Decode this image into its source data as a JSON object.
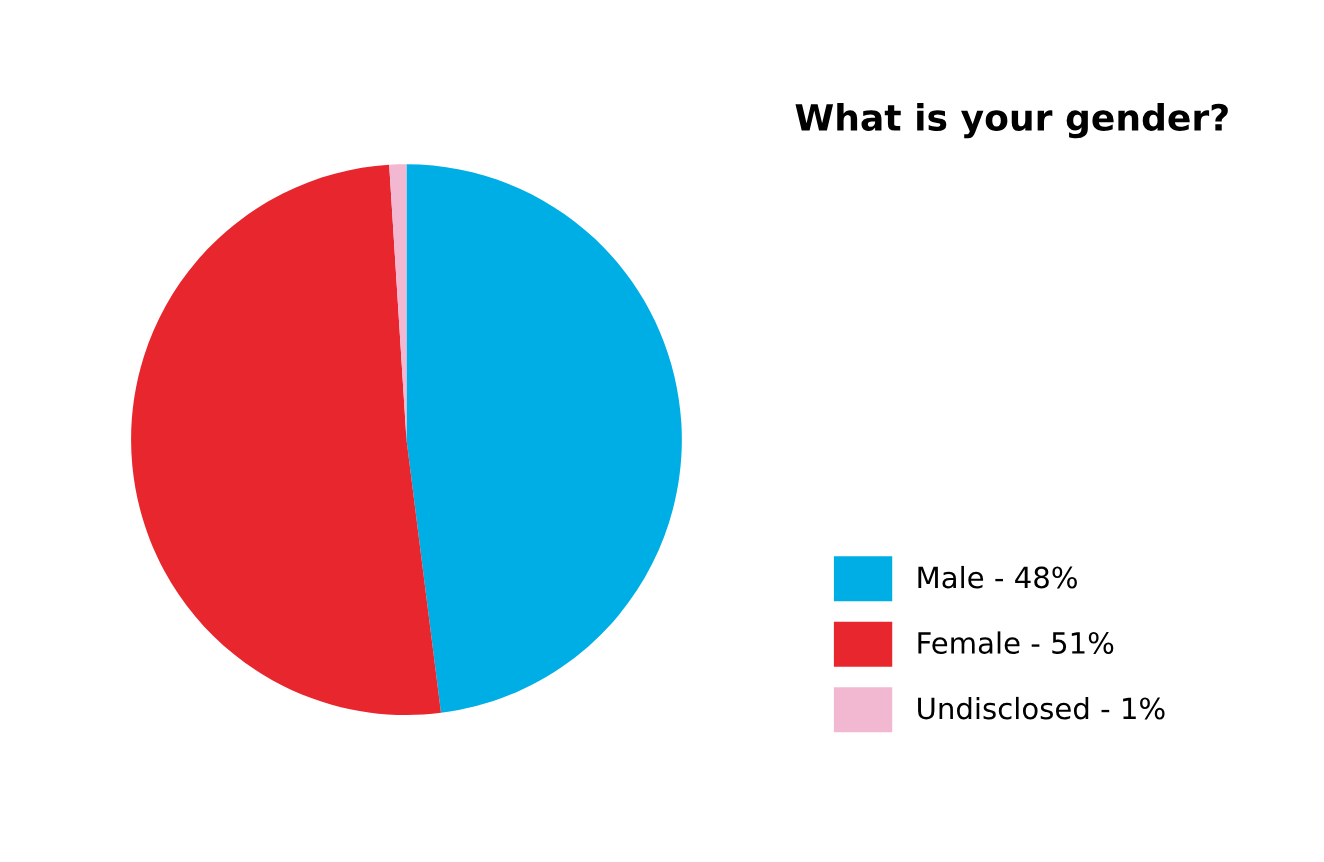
{
  "chart_data": {
    "type": "pie",
    "title": "What is your gender?",
    "categories": [
      "Male - 48%",
      "Female - 51%",
      "Undisclosed - 1%"
    ],
    "values": [
      48,
      51,
      1
    ],
    "colors": [
      "#00aee6",
      "#e8262e",
      "#f2b8d2"
    ],
    "legend": "right"
  }
}
